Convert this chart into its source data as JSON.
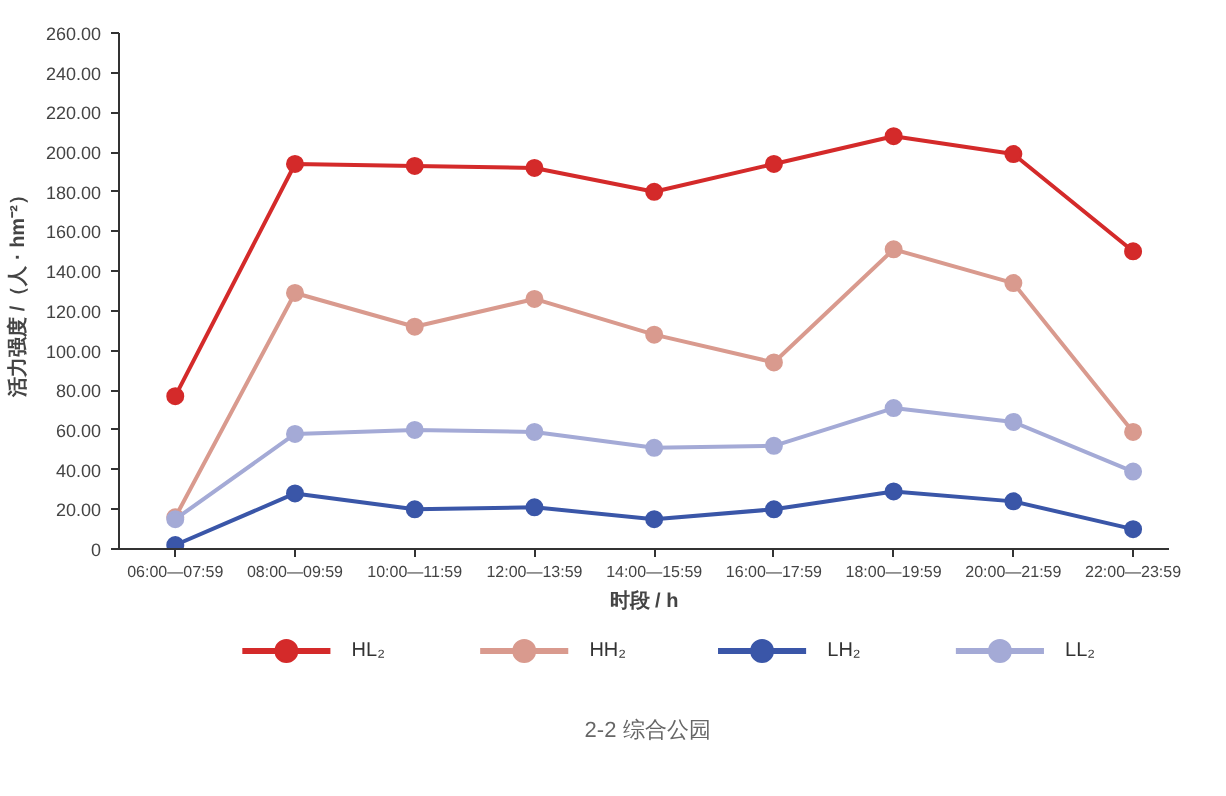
{
  "chart_data": {
    "type": "line",
    "title": "2-2 综合公园",
    "xlabel": "时段 / h",
    "ylabel": "活力强度 /（人 · hm⁻²）",
    "categories": [
      "06:00—07:59",
      "08:00—09:59",
      "10:00—11:59",
      "12:00—13:59",
      "14:00—15:59",
      "16:00—17:59",
      "18:00—19:59",
      "20:00—21:59",
      "22:00—23:59"
    ],
    "series": [
      {
        "name": "HL₂",
        "color": "#d42a2a",
        "values": [
          77,
          194,
          193,
          192,
          180,
          194,
          208,
          199,
          150
        ]
      },
      {
        "name": "HH₂",
        "color": "#d99a8e",
        "values": [
          16,
          129,
          112,
          126,
          108,
          94,
          151,
          134,
          59
        ]
      },
      {
        "name": "LH₂",
        "color": "#3a56a8",
        "values": [
          2,
          28,
          20,
          21,
          15,
          20,
          29,
          24,
          10
        ]
      },
      {
        "name": "LL₂",
        "color": "#a4aad6",
        "values": [
          15,
          58,
          60,
          59,
          51,
          52,
          71,
          64,
          39
        ]
      }
    ],
    "ylim": [
      0,
      260
    ],
    "yticks": [
      0,
      {
        "value": 20,
        "label": "20.00"
      },
      {
        "value": 40,
        "label": "40.00"
      },
      {
        "value": 60,
        "label": "60.00"
      },
      {
        "value": 80,
        "label": "80.00"
      },
      {
        "value": 100,
        "label": "100.00"
      },
      {
        "value": 120,
        "label": "120.00"
      },
      {
        "value": 140,
        "label": "140.00"
      },
      {
        "value": 160,
        "label": "160.00"
      },
      {
        "value": 180,
        "label": "180.00"
      },
      {
        "value": 200,
        "label": "200.00"
      },
      {
        "value": 220,
        "label": "220.00"
      },
      {
        "value": 240,
        "label": "240.00"
      },
      {
        "value": 260,
        "label": "260.00"
      }
    ],
    "grid": false,
    "legend": "bottom",
    "marker": "circle",
    "line_style": "solid"
  }
}
